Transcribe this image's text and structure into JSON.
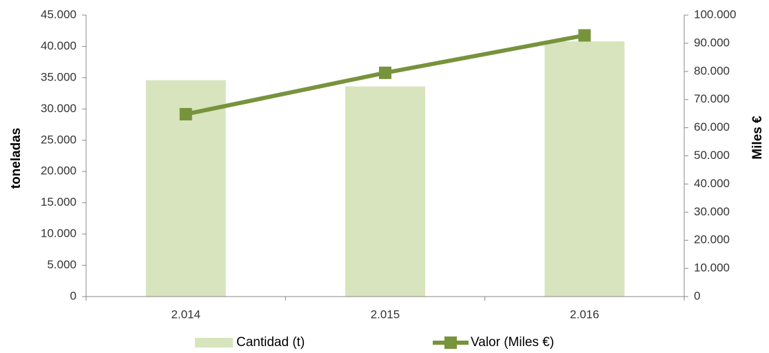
{
  "chart_data": {
    "type": "bar",
    "categories": [
      "2.014",
      "2.015",
      "2.016"
    ],
    "series": [
      {
        "name": "Cantidad (t)",
        "type": "bar",
        "color": "#d7e4bd",
        "values": [
          34600,
          33600,
          40800
        ]
      },
      {
        "name": "Valor (Miles €)",
        "type": "line",
        "axis": "y2",
        "color": "#77933c",
        "values": [
          64800,
          79500,
          92800
        ]
      }
    ],
    "ylabel": "toneladas",
    "y2label": "Miles €",
    "ylim": [
      0,
      45000
    ],
    "yticks": [
      0,
      {
        "value": 5000,
        "label": "5.000"
      },
      {
        "value": 10000,
        "label": "10.000"
      },
      {
        "value": 15000,
        "label": "15.000"
      },
      {
        "value": 20000,
        "label": "20.000"
      },
      {
        "value": 25000,
        "label": "25.000"
      },
      {
        "value": 30000,
        "label": "30.000"
      },
      {
        "value": 35000,
        "label": "35.000"
      },
      {
        "value": 40000,
        "label": "40.000"
      },
      {
        "value": 45000,
        "label": "45.000"
      }
    ],
    "y2lim": [
      0,
      100000
    ],
    "y2ticks": [
      0,
      {
        "value": 10000,
        "label": "10.000"
      },
      {
        "value": 20000,
        "label": "20.000"
      },
      {
        "value": 30000,
        "label": "30.000"
      },
      {
        "value": 40000,
        "label": "40.000"
      },
      {
        "value": 50000,
        "label": "50.000"
      },
      {
        "value": 60000,
        "label": "60.000"
      },
      {
        "value": 70000,
        "label": "70.000"
      },
      {
        "value": 80000,
        "label": "80.000"
      },
      {
        "value": 90000,
        "label": "90.000"
      },
      {
        "value": 100000,
        "label": "100.000"
      }
    ],
    "legend": "bottom"
  }
}
